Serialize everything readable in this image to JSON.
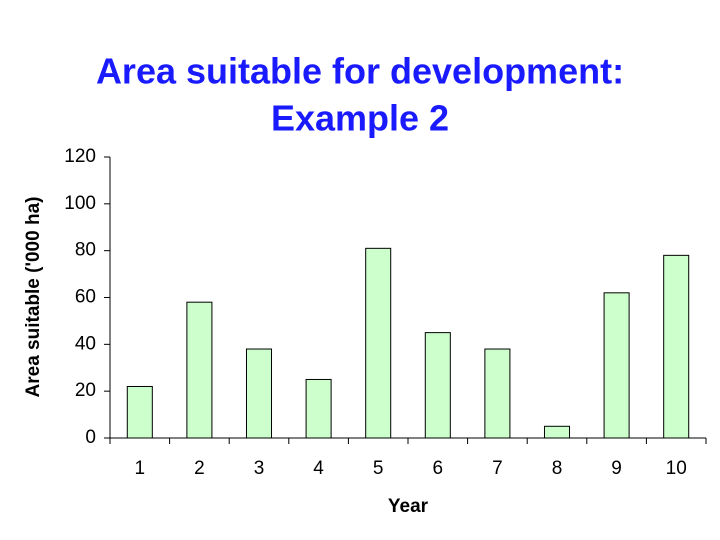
{
  "chart_data": {
    "type": "bar",
    "title": [
      "Area suitable for development:",
      "Example 2"
    ],
    "x_label": "Year",
    "y_label": "Area suitable ('000 ha)",
    "categories": [
      "1",
      "2",
      "3",
      "4",
      "5",
      "6",
      "7",
      "8",
      "9",
      "10"
    ],
    "values": [
      22,
      58,
      38,
      25,
      81,
      45,
      38,
      5,
      62,
      78
    ],
    "color": "#ccffcc",
    "ylim": [
      0,
      120
    ],
    "yticks": [
      0,
      20,
      40,
      60,
      80,
      100,
      120
    ],
    "grid": false
  }
}
